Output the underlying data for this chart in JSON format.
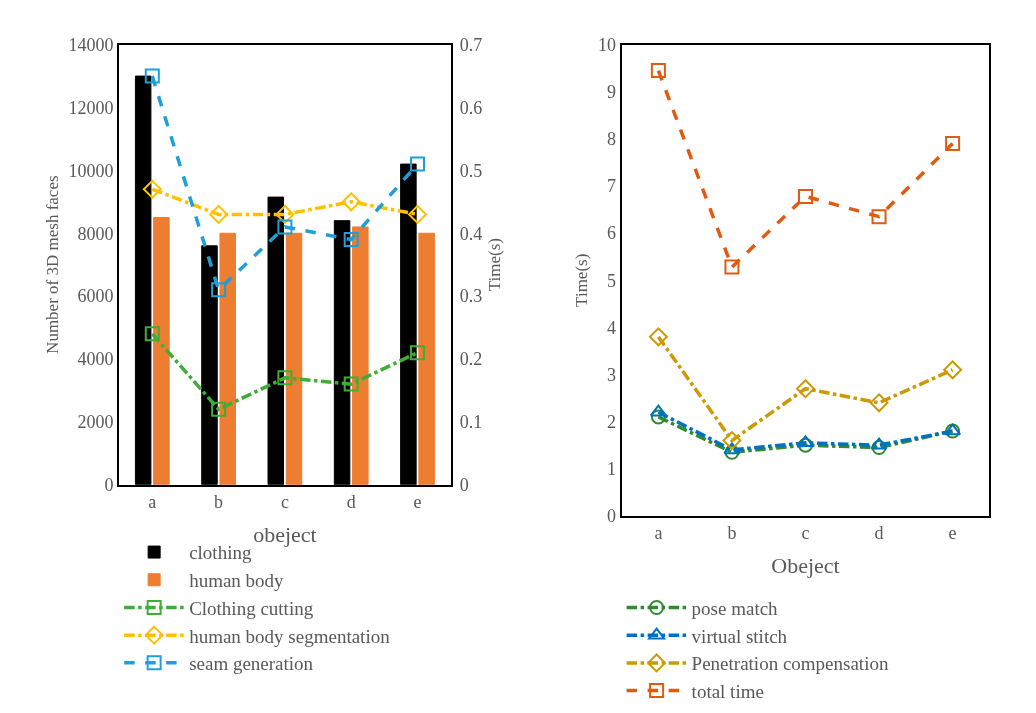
{
  "chart_data": [
    {
      "type": "bar",
      "categories": [
        "a",
        "b",
        "c",
        "d",
        "e"
      ],
      "xlabel": "obeject",
      "ylabel": "Number of 3D mesh faces",
      "y2label": "Time(s)",
      "ylim": [
        0,
        14000
      ],
      "yticks": [
        0,
        2000,
        4000,
        6000,
        8000,
        10000,
        12000,
        14000
      ],
      "y2lim": [
        0,
        0.7
      ],
      "y2ticks": [
        0,
        0.1,
        0.2,
        0.3,
        0.4,
        0.5,
        0.6,
        0.7
      ],
      "legend": "bottom",
      "series": [
        {
          "name": "clothing",
          "color": "#000000",
          "values": [
            13000,
            7600,
            9150,
            8400,
            10200
          ]
        },
        {
          "name": "human body",
          "color": "#ed7d31",
          "values": [
            8500,
            8000,
            8000,
            8200,
            8000
          ]
        },
        {
          "name": "Clothing cutting",
          "type": "line",
          "axis": "y2",
          "color": "#3fae36",
          "marker": "square",
          "line_style": "dashdot",
          "values": [
            0.24,
            0.12,
            0.17,
            0.16,
            0.21
          ]
        },
        {
          "name": "human body segmentation",
          "type": "line",
          "axis": "y2",
          "color": "#ffc000",
          "marker": "diamond",
          "line_style": "dashdot",
          "values": [
            0.47,
            0.43,
            0.43,
            0.45,
            0.43
          ]
        },
        {
          "name": "seam generation",
          "type": "line",
          "axis": "y2",
          "color": "#1f9fd8",
          "marker": "square",
          "line_style": "dashed",
          "values": [
            0.65,
            0.31,
            0.41,
            0.39,
            0.51
          ]
        }
      ]
    },
    {
      "type": "line",
      "categories": [
        "a",
        "b",
        "c",
        "d",
        "e"
      ],
      "xlabel": "Obeject",
      "ylabel": "Time(s)",
      "ylim": [
        0,
        10
      ],
      "yticks": [
        0,
        1,
        2,
        3,
        4,
        5,
        6,
        7,
        8,
        9,
        10
      ],
      "legend": "bottom",
      "series": [
        {
          "name": "pose match",
          "color": "#2e8b2e",
          "marker": "circle",
          "line_style": "dashdot",
          "values": [
            2.1,
            1.35,
            1.5,
            1.45,
            1.8
          ]
        },
        {
          "name": "virtual stitch",
          "color": "#0070c0",
          "marker": "triangle",
          "line_style": "dashdot",
          "values": [
            2.2,
            1.4,
            1.55,
            1.5,
            1.8
          ]
        },
        {
          "name": "Penetration compensation",
          "color": "#cc9900",
          "marker": "diamond",
          "line_style": "dashdot",
          "values": [
            3.8,
            1.6,
            2.7,
            2.4,
            3.1
          ]
        },
        {
          "name": "total time",
          "color": "#e05a10",
          "marker": "square",
          "line_style": "dashed",
          "values": [
            9.45,
            5.28,
            6.78,
            6.35,
            7.9
          ]
        }
      ]
    }
  ]
}
